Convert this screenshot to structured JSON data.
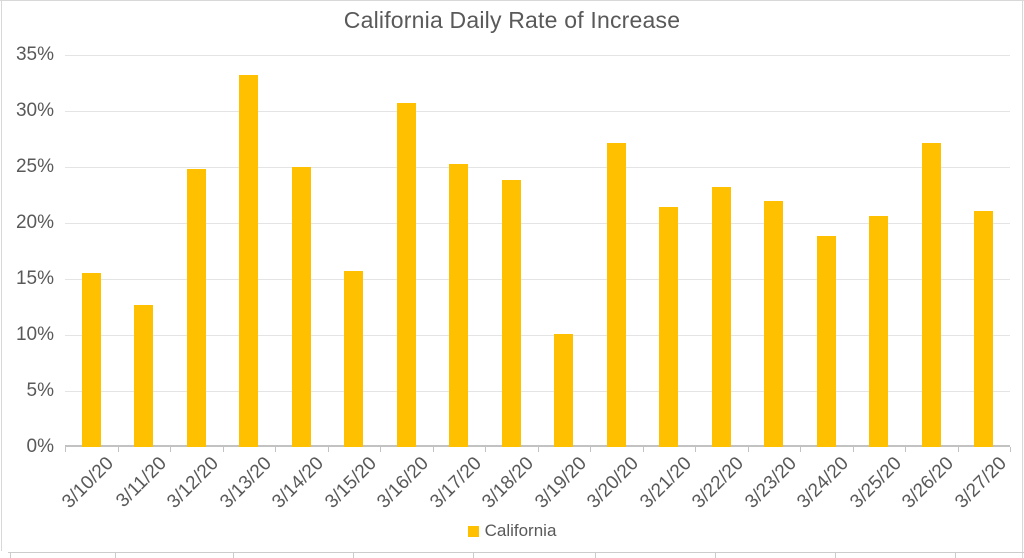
{
  "chart_data": {
    "type": "bar",
    "title": "California Daily Rate of Increase",
    "categories": [
      "3/10/20",
      "3/11/20",
      "3/12/20",
      "3/13/20",
      "3/14/20",
      "3/15/20",
      "3/16/20",
      "3/17/20",
      "3/18/20",
      "3/19/20",
      "3/20/20",
      "3/21/20",
      "3/22/20",
      "3/23/20",
      "3/24/20",
      "3/25/20",
      "3/26/20",
      "3/27/20"
    ],
    "series": [
      {
        "name": "California",
        "values": [
          15.5,
          12.7,
          24.8,
          33.2,
          25.0,
          15.7,
          30.7,
          25.3,
          23.8,
          10.1,
          27.1,
          21.4,
          23.2,
          22.0,
          18.8,
          20.6,
          27.1,
          21.1
        ]
      }
    ],
    "xlabel": "",
    "ylabel": "",
    "ylim": [
      0,
      35
    ],
    "y_ticks": [
      "0%",
      "5%",
      "10%",
      "15%",
      "20%",
      "25%",
      "30%",
      "35%"
    ],
    "grid": true,
    "legend_position": "bottom",
    "bar_color": "#FFC000",
    "text_color": "#595959",
    "gridline_color": "#e4e4e4",
    "axis_color": "#c2c2c2"
  }
}
